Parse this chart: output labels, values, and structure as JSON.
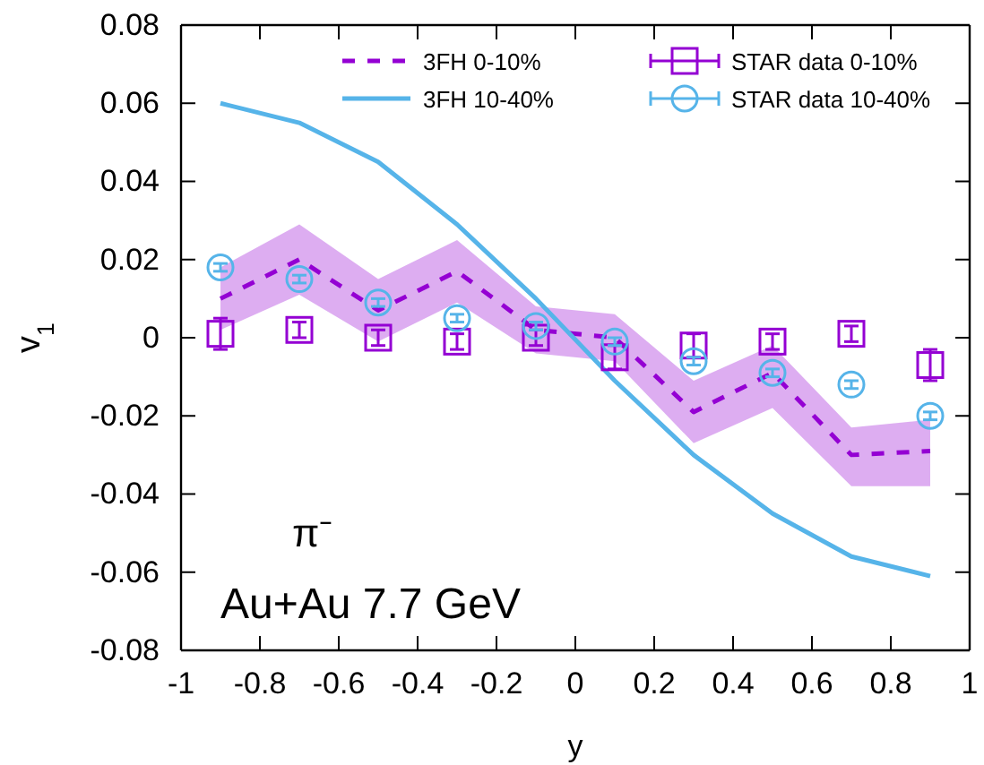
{
  "chart_data": {
    "type": "line",
    "xlabel": "y",
    "ylabel": "v$_{1}$",
    "xlim": [
      -1,
      1
    ],
    "ylim": [
      -0.08,
      0.08
    ],
    "xticks": [
      -1,
      -0.8,
      -0.6,
      -0.4,
      -0.2,
      0,
      0.2,
      0.4,
      0.6,
      0.8,
      1
    ],
    "yticks": [
      -0.08,
      -0.06,
      -0.04,
      -0.02,
      0,
      0.02,
      0.04,
      0.06,
      0.08
    ],
    "x": [
      -0.9,
      -0.7,
      -0.5,
      -0.3,
      -0.1,
      0.1,
      0.3,
      0.5,
      0.7,
      0.9
    ],
    "legend": "top",
    "grid": false,
    "annotations": [
      "π⁻",
      "Au+Au 7.7 GeV"
    ],
    "series": [
      {
        "name": "3FH 0-10%",
        "type": "line",
        "color": "#9400d3",
        "line_style": "dashed",
        "marker": "none",
        "values": [
          0.01,
          0.02,
          0.007,
          0.017,
          0.002,
          0.0,
          -0.019,
          -0.009,
          -0.03,
          -0.029
        ],
        "lower": [
          0.002,
          0.011,
          -0.001,
          0.009,
          -0.004,
          -0.006,
          -0.027,
          -0.018,
          -0.038,
          -0.038
        ],
        "upper": [
          0.018,
          0.029,
          0.015,
          0.025,
          0.008,
          0.006,
          -0.011,
          -0.002,
          -0.023,
          -0.021
        ]
      },
      {
        "name": "3FH 10-40%",
        "type": "line",
        "color": "#56b4e9",
        "line_style": "solid",
        "marker": "none",
        "values": [
          0.06,
          0.055,
          0.045,
          0.029,
          0.01,
          -0.011,
          -0.03,
          -0.045,
          -0.056,
          -0.061
        ]
      },
      {
        "name": "STAR data 0-10%",
        "type": "scatter",
        "color": "#9400d3",
        "marker": "square",
        "values": [
          0.001,
          0.002,
          0.0,
          -0.001,
          0.0,
          -0.005,
          -0.002,
          -0.001,
          0.001,
          -0.007
        ],
        "errors": [
          0.004,
          0.002,
          0.002,
          0.002,
          0.002,
          0.003,
          0.003,
          0.002,
          0.002,
          0.004
        ]
      },
      {
        "name": "STAR data 10-40%",
        "type": "scatter",
        "color": "#56b4e9",
        "marker": "circle",
        "values": [
          0.018,
          0.015,
          0.009,
          0.005,
          0.003,
          -0.001,
          -0.006,
          -0.009,
          -0.012,
          -0.02
        ],
        "errors": [
          0.001,
          0.001,
          0.001,
          0.001,
          0.001,
          0.001,
          0.001,
          0.001,
          0.001,
          0.001
        ]
      }
    ]
  }
}
